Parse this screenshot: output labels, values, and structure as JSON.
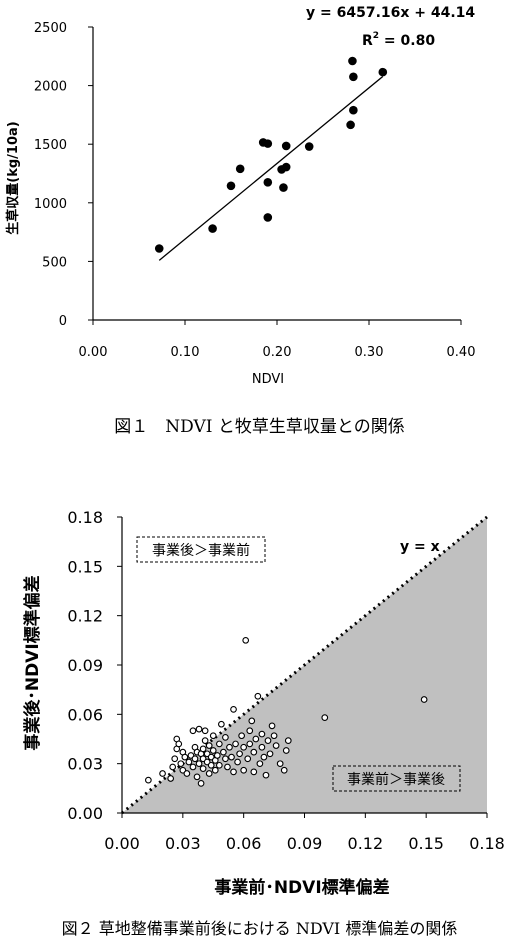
{
  "chart_data": [
    {
      "type": "scatter",
      "caption": "図１　NDVI と牧草生草収量との関係",
      "xlabel": "NDVI",
      "ylabel": "生草収量(kg/10a)",
      "xlim": [
        0,
        0.4
      ],
      "ylim": [
        0,
        2500
      ],
      "x_ticks": [
        "0.00",
        "0.10",
        "0.20",
        "0.30",
        "0.40"
      ],
      "y_ticks": [
        "0",
        "500",
        "1000",
        "1500",
        "2000",
        "2500"
      ],
      "equation": "y = 6457.16x + 44.14",
      "r2_label": "R",
      "r2_sup": "2",
      "r2_value": " = 0.80",
      "regression": {
        "slope": 6457.16,
        "intercept": 44.14,
        "x_range": [
          0.072,
          0.315
        ]
      },
      "grid": false,
      "points": [
        [
          0.072,
          610
        ],
        [
          0.13,
          780
        ],
        [
          0.15,
          1145
        ],
        [
          0.16,
          1290
        ],
        [
          0.185,
          1515
        ],
        [
          0.19,
          1505
        ],
        [
          0.19,
          875
        ],
        [
          0.19,
          1175
        ],
        [
          0.205,
          1285
        ],
        [
          0.207,
          1130
        ],
        [
          0.21,
          1485
        ],
        [
          0.21,
          1305
        ],
        [
          0.235,
          1480
        ],
        [
          0.28,
          1665
        ],
        [
          0.282,
          2210
        ],
        [
          0.283,
          2075
        ],
        [
          0.283,
          1790
        ],
        [
          0.315,
          2115
        ]
      ]
    },
    {
      "type": "scatter",
      "caption": "図２ 草地整備事業前後における NDVI 標準偏差の関係",
      "xlabel": "事業前･NDVI標準偏差",
      "ylabel": "事業後･NDVI標準偏差",
      "xlim": [
        0,
        0.18
      ],
      "ylim": [
        0,
        0.18
      ],
      "x_ticks": [
        "0.00",
        "0.03",
        "0.06",
        "0.09",
        "0.12",
        "0.15",
        "0.18"
      ],
      "y_ticks": [
        "0.00",
        "0.03",
        "0.06",
        "0.09",
        "0.12",
        "0.15",
        "0.18"
      ],
      "line_label": "y = x",
      "upper_label": "事業後＞事業前",
      "lower_label": "事業前＞事業後",
      "shade_color": "#c0c0c0",
      "grid": false,
      "points": [
        [
          0.013,
          0.02
        ],
        [
          0.02,
          0.024
        ],
        [
          0.024,
          0.021
        ],
        [
          0.025,
          0.028
        ],
        [
          0.026,
          0.033
        ],
        [
          0.027,
          0.039
        ],
        [
          0.027,
          0.045
        ],
        [
          0.028,
          0.042
        ],
        [
          0.029,
          0.03
        ],
        [
          0.03,
          0.026
        ],
        [
          0.03,
          0.037
        ],
        [
          0.031,
          0.034
        ],
        [
          0.032,
          0.024
        ],
        [
          0.033,
          0.031
        ],
        [
          0.034,
          0.035
        ],
        [
          0.035,
          0.028
        ],
        [
          0.035,
          0.05
        ],
        [
          0.036,
          0.04
        ],
        [
          0.036,
          0.033
        ],
        [
          0.037,
          0.037
        ],
        [
          0.037,
          0.022
        ],
        [
          0.038,
          0.051
        ],
        [
          0.038,
          0.03
        ],
        [
          0.039,
          0.036
        ],
        [
          0.039,
          0.018
        ],
        [
          0.04,
          0.039
        ],
        [
          0.04,
          0.027
        ],
        [
          0.04,
          0.033
        ],
        [
          0.041,
          0.05
        ],
        [
          0.041,
          0.044
        ],
        [
          0.042,
          0.031
        ],
        [
          0.042,
          0.036
        ],
        [
          0.043,
          0.024
        ],
        [
          0.043,
          0.041
        ],
        [
          0.044,
          0.034
        ],
        [
          0.044,
          0.029
        ],
        [
          0.045,
          0.047
        ],
        [
          0.045,
          0.038
        ],
        [
          0.046,
          0.032
        ],
        [
          0.046,
          0.026
        ],
        [
          0.047,
          0.035
        ],
        [
          0.048,
          0.042
        ],
        [
          0.048,
          0.029
        ],
        [
          0.049,
          0.054
        ],
        [
          0.05,
          0.037
        ],
        [
          0.051,
          0.033
        ],
        [
          0.051,
          0.046
        ],
        [
          0.052,
          0.028
        ],
        [
          0.053,
          0.04
        ],
        [
          0.054,
          0.034
        ],
        [
          0.055,
          0.063
        ],
        [
          0.055,
          0.025
        ],
        [
          0.056,
          0.042
        ],
        [
          0.057,
          0.031
        ],
        [
          0.058,
          0.036
        ],
        [
          0.059,
          0.047
        ],
        [
          0.06,
          0.026
        ],
        [
          0.06,
          0.04
        ],
        [
          0.061,
          0.105
        ],
        [
          0.062,
          0.033
        ],
        [
          0.063,
          0.05
        ],
        [
          0.063,
          0.042
        ],
        [
          0.064,
          0.056
        ],
        [
          0.065,
          0.025
        ],
        [
          0.065,
          0.037
        ],
        [
          0.066,
          0.045
        ],
        [
          0.067,
          0.071
        ],
        [
          0.068,
          0.03
        ],
        [
          0.069,
          0.048
        ],
        [
          0.069,
          0.04
        ],
        [
          0.07,
          0.034
        ],
        [
          0.071,
          0.023
        ],
        [
          0.072,
          0.044
        ],
        [
          0.073,
          0.036
        ],
        [
          0.074,
          0.053
        ],
        [
          0.075,
          0.047
        ],
        [
          0.076,
          0.041
        ],
        [
          0.078,
          0.03
        ],
        [
          0.08,
          0.026
        ],
        [
          0.081,
          0.038
        ],
        [
          0.082,
          0.044
        ],
        [
          0.1,
          0.058
        ],
        [
          0.149,
          0.069
        ]
      ]
    }
  ]
}
